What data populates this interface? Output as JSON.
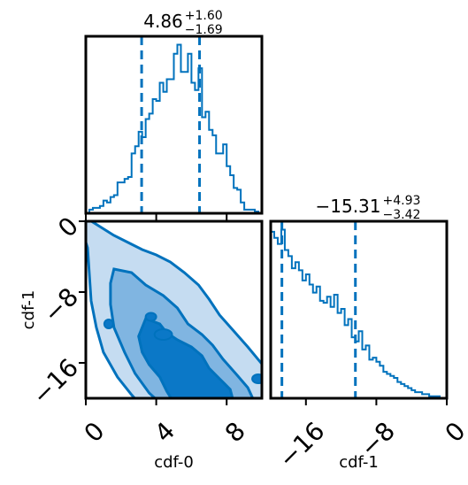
{
  "chart_data": [
    {
      "type": "histogram",
      "panel": "top-left",
      "title_value": "4.86",
      "title_plus": "+1.60",
      "title_minus": "−1.69",
      "xlim": [
        0,
        10
      ],
      "xticks": [
        0,
        4,
        8
      ],
      "bins_x": [
        0.3,
        0.5,
        0.7,
        0.9,
        1.1,
        1.3,
        1.5,
        1.7,
        1.9,
        2.1,
        2.3,
        2.5,
        2.7,
        2.9,
        3.1,
        3.3,
        3.5,
        3.7,
        3.9,
        4.1,
        4.3,
        4.5,
        4.7,
        4.9,
        5.1,
        5.3,
        5.5,
        5.7,
        5.9,
        6.1,
        6.3,
        6.5,
        6.7,
        6.9,
        7.1,
        7.3,
        7.5,
        7.7,
        7.9,
        8.1,
        8.3,
        8.5,
        8.7,
        8.9,
        9.1,
        9.3,
        9.5,
        9.7,
        9.9
      ],
      "counts": [
        2,
        3,
        3,
        4,
        7,
        6,
        9,
        10,
        17,
        17,
        19,
        20,
        33,
        37,
        45,
        42,
        52,
        55,
        63,
        62,
        72,
        67,
        74,
        74,
        88,
        93,
        78,
        78,
        88,
        72,
        68,
        80,
        53,
        56,
        46,
        43,
        33,
        33,
        38,
        26,
        21,
        14,
        13,
        6,
        2,
        2,
        2,
        1,
        0
      ],
      "quantile_lines": [
        3.17,
        6.46
      ],
      "line_color": "#0072bd"
    },
    {
      "type": "heatmap",
      "panel": "bottom-left",
      "xlabel": "cdf-0",
      "ylabel": "cdf-1",
      "xlim": [
        0,
        10
      ],
      "ylim": [
        -20,
        0
      ],
      "xticks": [
        0,
        4,
        8
      ],
      "yticks": [
        0,
        -8,
        -16
      ],
      "ytick_labels": [
        "0",
        "−8",
        "−16"
      ],
      "contour_levels": [
        "outer",
        "middle",
        "inner"
      ],
      "fill_colors": [
        "#c5dcf1",
        "#80b5e1",
        "#0b78c7"
      ],
      "line_color": "#0072bd"
    },
    {
      "type": "histogram",
      "panel": "bottom-right",
      "title_value": "−15.31",
      "title_plus": "+4.93",
      "title_minus": "−3.42",
      "xlabel": "cdf-1",
      "xlim": [
        -20,
        0
      ],
      "xticks": [
        -16,
        -8,
        0
      ],
      "xtick_labels": [
        "−16",
        "−8",
        "0"
      ],
      "bins_x": [
        -19.8,
        -19.4,
        -19.0,
        -18.6,
        -18.2,
        -17.8,
        -17.4,
        -17.0,
        -16.6,
        -16.2,
        -15.8,
        -15.4,
        -15.0,
        -14.6,
        -14.2,
        -13.8,
        -13.4,
        -13.0,
        -12.6,
        -12.2,
        -11.8,
        -11.4,
        -11.0,
        -10.6,
        -10.2,
        -9.8,
        -9.4,
        -9.0,
        -8.6,
        -8.2,
        -7.8,
        -7.4,
        -7.0,
        -6.6,
        -6.2,
        -5.8,
        -5.4,
        -5.0,
        -4.6,
        -4.2,
        -3.8,
        -3.4,
        -3.0,
        -2.6,
        -2.2,
        -1.8,
        -1.4,
        -1.0,
        -0.6,
        -0.2
      ],
      "counts": [
        82,
        79,
        76,
        83,
        73,
        70,
        64,
        67,
        63,
        58,
        61,
        56,
        52,
        55,
        48,
        47,
        50,
        45,
        51,
        42,
        44,
        36,
        39,
        30,
        28,
        33,
        24,
        26,
        19,
        20,
        18,
        16,
        13,
        12,
        11,
        10,
        8,
        7,
        6,
        5,
        4,
        3,
        3,
        2,
        2,
        1,
        1,
        1,
        0,
        0
      ],
      "quantile_lines": [
        -18.73,
        -10.38
      ],
      "line_color": "#0072bd"
    }
  ]
}
